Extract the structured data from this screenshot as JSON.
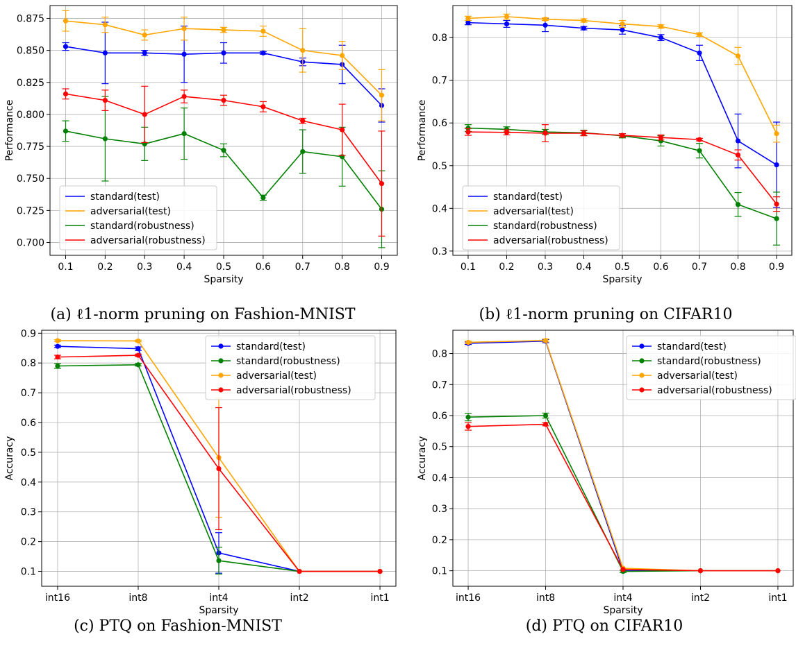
{
  "chart_data": [
    {
      "id": "a",
      "type": "line",
      "caption": "(a) ℓ1-norm pruning on Fashion-MNIST",
      "xlabel": "Sparsity",
      "ylabel": "Performance",
      "categories": [
        "0.1",
        "0.2",
        "0.3",
        "0.4",
        "0.5",
        "0.6",
        "0.7",
        "0.8",
        "0.9"
      ],
      "ylim": [
        0.69,
        0.885
      ],
      "yticks": [
        0.7,
        0.725,
        0.75,
        0.775,
        0.8,
        0.825,
        0.85,
        0.875
      ],
      "ytick_labels": [
        "0.700",
        "0.725",
        "0.750",
        "0.775",
        "0.800",
        "0.825",
        "0.850",
        "0.875"
      ],
      "grid": true,
      "legend": "lower-left",
      "legend_markers": false,
      "series": [
        {
          "name": "standard(test)",
          "color": "#0000ff",
          "values": [
            0.853,
            0.848,
            0.848,
            0.847,
            0.848,
            0.848,
            0.841,
            0.839,
            0.807
          ],
          "errors": [
            0.003,
            0.024,
            0.002,
            0.022,
            0.008,
            0.001,
            0.003,
            0.015,
            0.013
          ]
        },
        {
          "name": "adversarial(test)",
          "color": "#ffa500",
          "values": [
            0.873,
            0.87,
            0.862,
            0.867,
            0.866,
            0.865,
            0.85,
            0.846,
            0.815
          ],
          "errors": [
            0.008,
            0.006,
            0.004,
            0.009,
            0.002,
            0.004,
            0.017,
            0.011,
            0.02
          ]
        },
        {
          "name": "standard(robustness)",
          "color": "#008000",
          "values": [
            0.787,
            0.781,
            0.777,
            0.785,
            0.772,
            0.735,
            0.771,
            0.767,
            0.726
          ],
          "errors": [
            0.008,
            0.033,
            0.013,
            0.02,
            0.005,
            0.002,
            0.017,
            0.023,
            0.03
          ]
        },
        {
          "name": "adversarial(robustness)",
          "color": "#ff0000",
          "values": [
            0.816,
            0.811,
            0.8,
            0.814,
            0.811,
            0.806,
            0.795,
            0.788,
            0.746
          ],
          "errors": [
            0.004,
            0.008,
            0.022,
            0.005,
            0.004,
            0.004,
            0.002,
            0.02,
            0.041
          ]
        }
      ]
    },
    {
      "id": "b",
      "type": "line",
      "caption": "(b) ℓ1-norm pruning on CIFAR10",
      "xlabel": "Sparsity",
      "ylabel": "Performance",
      "categories": [
        "0.1",
        "0.2",
        "0.3",
        "0.4",
        "0.5",
        "0.6",
        "0.7",
        "0.8",
        "0.9"
      ],
      "ylim": [
        0.29,
        0.875
      ],
      "yticks": [
        0.3,
        0.4,
        0.5,
        0.6,
        0.7,
        0.8
      ],
      "ytick_labels": [
        "0.3",
        "0.4",
        "0.5",
        "0.6",
        "0.7",
        "0.8"
      ],
      "grid": true,
      "legend": "lower-left",
      "legend_markers": false,
      "series": [
        {
          "name": "standard(test)",
          "color": "#0000ff",
          "values": [
            0.835,
            0.832,
            0.829,
            0.822,
            0.818,
            0.8,
            0.764,
            0.558,
            0.502
          ],
          "errors": [
            0.005,
            0.008,
            0.015,
            0.004,
            0.01,
            0.007,
            0.018,
            0.063,
            0.1
          ]
        },
        {
          "name": "adversarial(test)",
          "color": "#ffa500",
          "values": [
            0.845,
            0.849,
            0.843,
            0.84,
            0.832,
            0.826,
            0.807,
            0.757,
            0.575
          ],
          "errors": [
            0.005,
            0.006,
            0.003,
            0.004,
            0.008,
            0.004,
            0.004,
            0.02,
            0.02
          ]
        },
        {
          "name": "standard(robustness)",
          "color": "#008000",
          "values": [
            0.588,
            0.585,
            0.579,
            0.577,
            0.57,
            0.558,
            0.535,
            0.409,
            0.376
          ],
          "errors": [
            0.008,
            0.006,
            0.006,
            0.006,
            0.005,
            0.012,
            0.017,
            0.028,
            0.062
          ]
        },
        {
          "name": "adversarial(robustness)",
          "color": "#ff0000",
          "values": [
            0.579,
            0.578,
            0.576,
            0.576,
            0.571,
            0.566,
            0.561,
            0.525,
            0.41
          ],
          "errors": [
            0.008,
            0.006,
            0.02,
            0.006,
            0.004,
            0.006,
            0.003,
            0.012,
            0.017
          ]
        }
      ]
    },
    {
      "id": "c",
      "type": "line",
      "caption": "(c) PTQ on Fashion-MNIST",
      "xlabel": "Sparsity",
      "ylabel": "Accuracy",
      "categories": [
        "int16",
        "int8",
        "int4",
        "int2",
        "int1"
      ],
      "ylim": [
        0.05,
        0.91
      ],
      "yticks": [
        0.1,
        0.2,
        0.3,
        0.4,
        0.5,
        0.6,
        0.7,
        0.8,
        0.9
      ],
      "ytick_labels": [
        "0.1",
        "0.2",
        "0.3",
        "0.4",
        "0.5",
        "0.6",
        "0.7",
        "0.8",
        "0.9"
      ],
      "grid": true,
      "legend": "upper-right",
      "legend_markers": true,
      "series": [
        {
          "name": "standard(test)",
          "color": "#0000ff",
          "values": [
            0.856,
            0.848,
            0.162,
            0.1,
            0.1
          ],
          "errors": [
            0.004,
            0.006,
            0.068,
            0.0,
            0.0
          ]
        },
        {
          "name": "standard(robustness)",
          "color": "#008000",
          "values": [
            0.79,
            0.794,
            0.136,
            0.1,
            0.1
          ],
          "errors": [
            0.008,
            0.004,
            0.045,
            0.0,
            0.0
          ]
        },
        {
          "name": "adversarial(test)",
          "color": "#ffa500",
          "values": [
            0.875,
            0.874,
            0.482,
            0.1,
            0.1
          ],
          "errors": [
            0.003,
            0.003,
            0.2,
            0.0,
            0.0
          ]
        },
        {
          "name": "adversarial(robustness)",
          "color": "#ff0000",
          "values": [
            0.82,
            0.826,
            0.445,
            0.1,
            0.1
          ],
          "errors": [
            0.006,
            0.004,
            0.205,
            0.0,
            0.0
          ]
        }
      ]
    },
    {
      "id": "d",
      "type": "line",
      "caption": "(d) PTQ on CIFAR10",
      "xlabel": "Sparsity",
      "ylabel": "Accuracy",
      "categories": [
        "int16",
        "int8",
        "int4",
        "int2",
        "int1"
      ],
      "ylim": [
        0.05,
        0.875
      ],
      "yticks": [
        0.1,
        0.2,
        0.3,
        0.4,
        0.5,
        0.6,
        0.7,
        0.8
      ],
      "ytick_labels": [
        "0.1",
        "0.2",
        "0.3",
        "0.4",
        "0.5",
        "0.6",
        "0.7",
        "0.8"
      ],
      "grid": true,
      "legend": "upper-right",
      "legend_markers": true,
      "series": [
        {
          "name": "standard(test)",
          "color": "#0000ff",
          "values": [
            0.833,
            0.84,
            0.1,
            0.1,
            0.1
          ],
          "errors": [
            0.004,
            0.005,
            0.0,
            0.0,
            0.0
          ]
        },
        {
          "name": "standard(robustness)",
          "color": "#008000",
          "values": [
            0.595,
            0.6,
            0.098,
            0.1,
            0.1
          ],
          "errors": [
            0.012,
            0.008,
            0.004,
            0.0,
            0.0
          ]
        },
        {
          "name": "adversarial(test)",
          "color": "#ffa500",
          "values": [
            0.836,
            0.842,
            0.108,
            0.1,
            0.1
          ],
          "errors": [
            0.004,
            0.005,
            0.0,
            0.0,
            0.0
          ]
        },
        {
          "name": "adversarial(robustness)",
          "color": "#ff0000",
          "values": [
            0.565,
            0.572,
            0.104,
            0.1,
            0.1
          ],
          "errors": [
            0.012,
            0.005,
            0.0,
            0.0,
            0.0
          ]
        }
      ]
    }
  ]
}
